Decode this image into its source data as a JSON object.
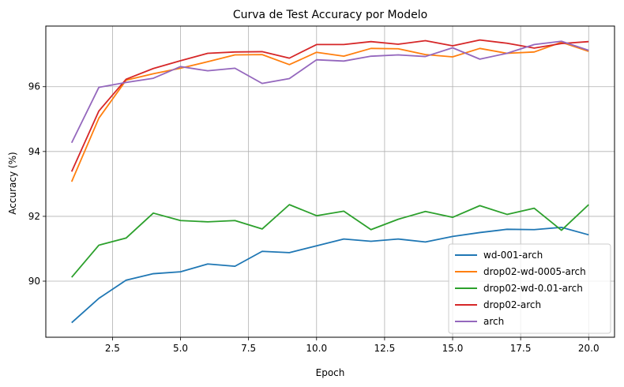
{
  "chart_data": {
    "type": "line",
    "title": "Curva de Test Accuracy por Modelo",
    "xlabel": "Epoch",
    "ylabel": "Accuracy (%)",
    "xlim": [
      0.05,
      20.95
    ],
    "ylim": [
      88.27,
      97.87
    ],
    "xticks": [
      2.5,
      5.0,
      7.5,
      10.0,
      12.5,
      15.0,
      17.5,
      20.0
    ],
    "yticks": [
      90,
      92,
      94,
      96
    ],
    "grid": true,
    "legend_position": "lower-right",
    "x": [
      1,
      2,
      3,
      4,
      5,
      6,
      7,
      8,
      9,
      10,
      11,
      12,
      13,
      14,
      15,
      16,
      17,
      18,
      19,
      20
    ],
    "series": [
      {
        "name": "wd-001-arch",
        "color": "#1f77b4",
        "values": [
          88.72,
          89.47,
          90.03,
          90.23,
          90.29,
          90.53,
          90.46,
          90.92,
          90.88,
          91.09,
          91.3,
          91.23,
          91.3,
          91.21,
          91.38,
          91.5,
          91.6,
          91.59,
          91.66,
          91.43
        ]
      },
      {
        "name": "drop02-wd-0005-arch",
        "color": "#ff7f0e",
        "values": [
          93.07,
          95.03,
          96.2,
          96.4,
          96.57,
          96.77,
          96.98,
          96.99,
          96.68,
          97.06,
          96.94,
          97.18,
          97.17,
          96.99,
          96.92,
          97.18,
          97.03,
          97.07,
          97.37,
          97.09
        ]
      },
      {
        "name": "drop02-wd-0.01-arch",
        "color": "#2ca02c",
        "values": [
          90.12,
          91.11,
          91.33,
          92.1,
          91.87,
          91.83,
          91.87,
          91.61,
          92.36,
          92.02,
          92.16,
          91.59,
          91.91,
          92.15,
          91.97,
          92.33,
          92.06,
          92.25,
          91.57,
          92.36
        ]
      },
      {
        "name": "drop02-arch",
        "color": "#d62728",
        "values": [
          93.38,
          95.25,
          96.23,
          96.56,
          96.8,
          97.03,
          97.07,
          97.08,
          96.88,
          97.3,
          97.3,
          97.39,
          97.31,
          97.42,
          97.26,
          97.44,
          97.34,
          97.19,
          97.33,
          97.39
        ]
      },
      {
        "name": "arch",
        "color": "#9467bd",
        "values": [
          94.27,
          95.98,
          96.13,
          96.26,
          96.62,
          96.49,
          96.57,
          96.1,
          96.25,
          96.83,
          96.79,
          96.94,
          96.98,
          96.93,
          97.2,
          96.85,
          97.03,
          97.3,
          97.4,
          97.12
        ]
      }
    ]
  }
}
